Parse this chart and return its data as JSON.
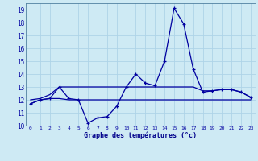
{
  "hours": [
    0,
    1,
    2,
    3,
    4,
    5,
    6,
    7,
    8,
    9,
    10,
    11,
    12,
    13,
    14,
    15,
    16,
    17,
    18,
    19,
    20,
    21,
    22,
    23
  ],
  "line_main": [
    11.7,
    12.0,
    12.1,
    13.0,
    12.1,
    12.0,
    10.2,
    10.6,
    10.7,
    11.5,
    13.0,
    14.0,
    13.3,
    13.1,
    15.0,
    19.1,
    17.9,
    14.4,
    12.6,
    12.7,
    12.8,
    12.8,
    12.6,
    12.2
  ],
  "line_max": [
    12.0,
    12.1,
    12.4,
    13.0,
    13.0,
    13.0,
    13.0,
    13.0,
    13.0,
    13.0,
    13.0,
    13.0,
    13.0,
    13.0,
    13.0,
    13.0,
    13.0,
    13.0,
    12.7,
    12.7,
    12.8,
    12.8,
    12.6,
    12.2
  ],
  "line_min": [
    11.7,
    12.0,
    12.1,
    12.1,
    12.0,
    12.0,
    12.0,
    12.0,
    12.0,
    12.0,
    12.0,
    12.0,
    12.0,
    12.0,
    12.0,
    12.0,
    12.0,
    12.0,
    12.0,
    12.0,
    12.0,
    12.0,
    12.0,
    12.0
  ],
  "line_color": "#0000a0",
  "bg_color": "#ceeaf4",
  "grid_color": "#aed4e8",
  "xlabel": "Graphe des températures (°c)",
  "ylim": [
    10,
    19.5
  ],
  "xlim": [
    -0.5,
    23.5
  ],
  "yticks": [
    10,
    11,
    12,
    13,
    14,
    15,
    16,
    17,
    18,
    19
  ],
  "xticks": [
    0,
    1,
    2,
    3,
    4,
    5,
    6,
    7,
    8,
    9,
    10,
    11,
    12,
    13,
    14,
    15,
    16,
    17,
    18,
    19,
    20,
    21,
    22,
    23
  ],
  "xlabel_color": "#00008b",
  "spine_color": "#5080a0"
}
